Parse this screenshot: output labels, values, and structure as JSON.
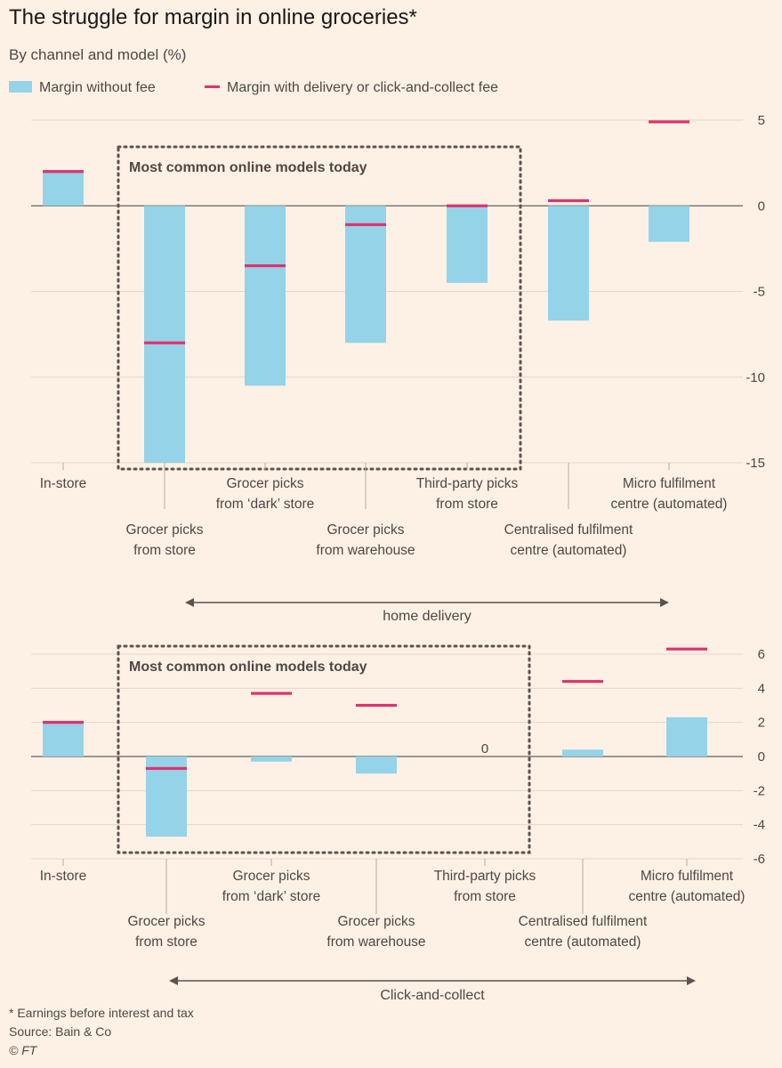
{
  "title": "The struggle for margin in online groceries*",
  "subtitle": "By channel and model (%)",
  "legend": {
    "bar_label": "Margin without fee",
    "line_label": "Margin with delivery or click-and-collect fee"
  },
  "colors": {
    "bar": "#95d3e8",
    "fee_line": "#e0326f",
    "axis": "#4d4845",
    "grid": "#e3d6ca"
  },
  "chart_data": [
    {
      "type": "bar",
      "panel": "home delivery",
      "channel_label": "home delivery",
      "highlight_label": "Most common online models today",
      "categories": [
        [
          "In-store"
        ],
        [
          "Grocer picks",
          "from store"
        ],
        [
          "Grocer picks",
          "from ‘dark’ store"
        ],
        [
          "Grocer picks",
          "from warehouse"
        ],
        [
          "Third-party picks",
          "from store"
        ],
        [
          "Centralised fulfilment",
          "centre (automated)"
        ],
        [
          "Micro fulfilment",
          "centre (automated)"
        ]
      ],
      "series": [
        {
          "name": "Margin without fee",
          "values": [
            2.1,
            -15.0,
            -10.5,
            -8.0,
            -4.5,
            -6.7,
            -2.1
          ]
        },
        {
          "name": "Margin with delivery or click-and-collect fee",
          "values": [
            2.0,
            -8.0,
            -3.5,
            -1.1,
            0.0,
            0.3,
            4.9
          ]
        }
      ],
      "yticks": [
        "5",
        "0",
        "-5",
        "-10",
        "-15"
      ],
      "ylim": [
        -15,
        5
      ],
      "zero_labels": []
    },
    {
      "type": "bar",
      "panel": "Click-and-collect",
      "channel_label": "Click-and-collect",
      "highlight_label": "Most common online models today",
      "categories": [
        [
          "In-store"
        ],
        [
          "Grocer picks",
          "from store"
        ],
        [
          "Grocer picks",
          "from ‘dark’ store"
        ],
        [
          "Grocer picks",
          "from warehouse"
        ],
        [
          "Third-party picks",
          "from store"
        ],
        [
          "Centralised fulfilment",
          "centre (automated)"
        ],
        [
          "Micro fulfilment",
          "centre (automated)"
        ]
      ],
      "series": [
        {
          "name": "Margin without fee",
          "values": [
            2.1,
            -4.7,
            -0.3,
            -1.0,
            0.0,
            0.4,
            2.3
          ]
        },
        {
          "name": "Margin with delivery or click-and-collect fee",
          "values": [
            2.0,
            -0.7,
            3.7,
            3.0,
            null,
            4.4,
            6.3
          ]
        }
      ],
      "yticks": [
        "6",
        "4",
        "2",
        "0",
        "-2",
        "-4",
        "-6"
      ],
      "ylim": [
        -6,
        6
      ],
      "zero_labels": [
        "",
        "",
        "",
        "",
        "0",
        "",
        ""
      ]
    }
  ],
  "footer": {
    "note": "* Earnings before interest and tax",
    "source": "Source: Bain & Co",
    "credit": "© FT"
  }
}
